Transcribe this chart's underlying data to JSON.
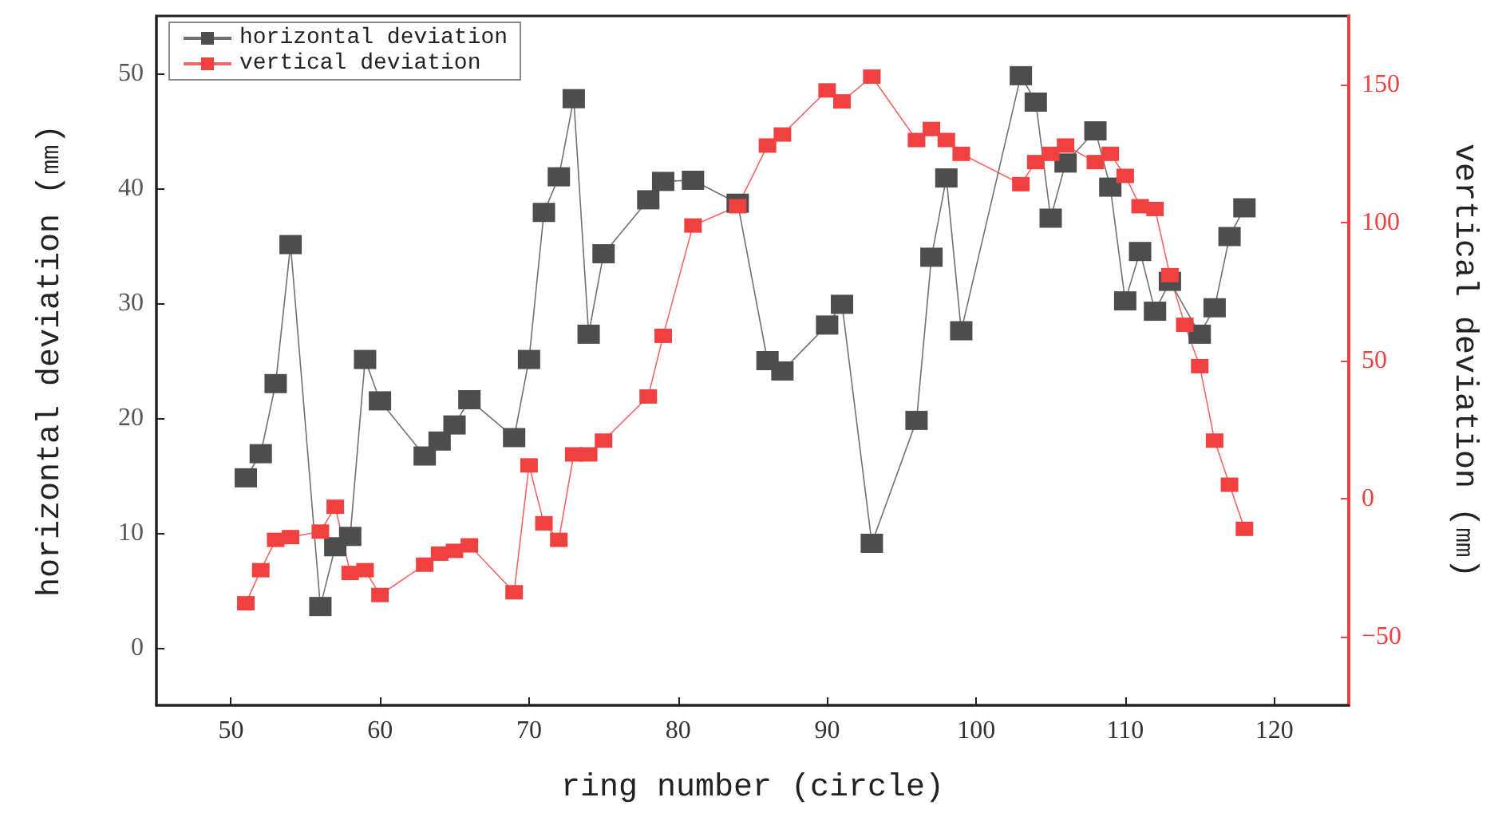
{
  "chart_data": {
    "type": "line",
    "xlabel": "ring number (circle)",
    "ylabel": "horizontal deviation (㎜)",
    "y2label": "vertical deviation (㎜)",
    "xlim": [
      45,
      125
    ],
    "xticks": [
      50,
      60,
      70,
      80,
      90,
      100,
      110,
      120
    ],
    "ylim": [
      -5,
      55
    ],
    "yticks": [
      0,
      10,
      20,
      30,
      40,
      50
    ],
    "y2lim": [
      -75,
      175
    ],
    "y2ticks": [
      -50,
      0,
      50,
      100,
      150
    ],
    "legend": "top left",
    "grid": false,
    "marker": "square",
    "line_style": "solid",
    "series": [
      {
        "name": "horizontal deviation",
        "color": "#4d4d4d",
        "x": [
          51,
          52,
          53,
          54,
          56,
          57,
          58,
          59,
          60,
          63,
          64,
          65,
          66,
          69,
          70,
          71,
          72,
          73,
          74,
          75,
          78,
          79,
          81,
          84,
          86,
          87,
          90,
          91,
          93,
          96,
          97,
          98,
          99,
          103,
          104,
          105,
          106,
          108,
          109,
          110,
          111,
          112,
          113,
          115,
          116,
          117,
          118
        ],
        "values": [
          14.8,
          16.9,
          23.0,
          35.1,
          3.6,
          8.8,
          9.7,
          25.1,
          21.5,
          16.7,
          18.0,
          19.4,
          21.6,
          18.3,
          25.1,
          37.9,
          41.0,
          47.8,
          27.3,
          34.3,
          39.0,
          40.6,
          40.7,
          38.7,
          25.0,
          24.1,
          28.1,
          29.9,
          9.1,
          19.8,
          34.0,
          40.9,
          27.6,
          49.8,
          47.5,
          37.4,
          42.2,
          45.0,
          40.1,
          30.2,
          34.5,
          29.3,
          31.9,
          27.3,
          29.6,
          35.8,
          38.3
        ]
      },
      {
        "name": "vertical deviation",
        "color": "#f04040",
        "axis": "y2",
        "x": [
          51,
          52,
          53,
          54,
          56,
          57,
          58,
          59,
          60,
          63,
          64,
          65,
          66,
          69,
          70,
          71,
          72,
          73,
          74,
          75,
          78,
          79,
          81,
          84,
          86,
          87,
          90,
          91,
          93,
          96,
          97,
          98,
          99,
          103,
          104,
          105,
          106,
          108,
          109,
          110,
          111,
          112,
          113,
          114,
          115,
          116,
          117,
          118
        ],
        "values": [
          -38,
          -26,
          -15,
          -14,
          -12,
          -3,
          -27,
          -26,
          -35,
          -24,
          -20,
          -19,
          -17,
          -34,
          12,
          -9,
          -15,
          16,
          16,
          21,
          37,
          59,
          99,
          106,
          128,
          132,
          148,
          144,
          153,
          130,
          134,
          130,
          125,
          114,
          122,
          125,
          128,
          122,
          125,
          117,
          106,
          105,
          81,
          63,
          48,
          21,
          5,
          -11
        ]
      }
    ]
  }
}
